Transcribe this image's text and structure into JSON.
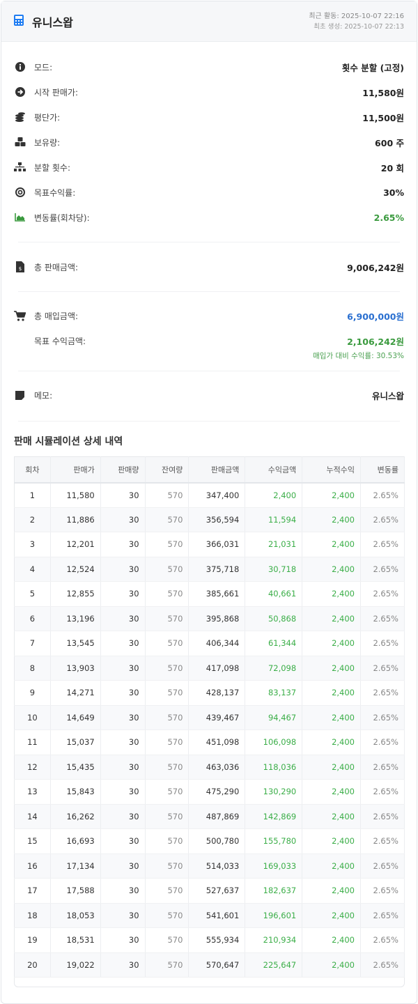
{
  "header": {
    "title": "유니스왑",
    "icon": "calculator-icon",
    "last_activity": "최근 활동: 2025-10-07 22:16",
    "created": "최초 생성: 2025-10-07 22:13"
  },
  "info": [
    {
      "icon": "info-circle-icon",
      "label": "모드:",
      "value": "횟수 분할 (고정)"
    },
    {
      "icon": "arrow-circle-right-icon",
      "label": "시작 판매가:",
      "value": "11,580원"
    },
    {
      "icon": "coins-icon",
      "label": "평단가:",
      "value": "11,500원"
    },
    {
      "icon": "cubes-icon",
      "label": "보유량:",
      "value": "600 주"
    },
    {
      "icon": "sitemap-icon",
      "label": "분할 횟수:",
      "value": "20 회"
    },
    {
      "icon": "target-icon",
      "label": "목표수익률:",
      "value": "30%"
    },
    {
      "icon": "area-chart-icon",
      "label": "변동률(회차당):",
      "value": "2.65%"
    }
  ],
  "totals": {
    "sales_label": "총 판매금액:",
    "sales_value": "9,006,242원",
    "purchase_label": "총 매입금액:",
    "purchase_value": "6,900,000원",
    "target_label": "목표 수익금액:",
    "target_value": "2,106,242원",
    "ratio": "매입가 대비 수익률: 30.53%"
  },
  "memo": {
    "label": "메모:",
    "value": "유니스왑"
  },
  "colors": {
    "accent": "#1e7cf2",
    "green": "#3a9a3e",
    "blue": "#2a6fd0"
  },
  "table": {
    "title": "판매 시뮬레이션 상세 내역",
    "columns": [
      "회차",
      "판매가",
      "판매량",
      "잔여량",
      "판매금액",
      "수익금액",
      "누적수익",
      "변동률"
    ],
    "rows": [
      [
        "1",
        "11,580",
        "30",
        "570",
        "347,400",
        "2,400",
        "2,400",
        "2.65%"
      ],
      [
        "2",
        "11,886",
        "30",
        "570",
        "356,594",
        "11,594",
        "2,400",
        "2.65%"
      ],
      [
        "3",
        "12,201",
        "30",
        "570",
        "366,031",
        "21,031",
        "2,400",
        "2.65%"
      ],
      [
        "4",
        "12,524",
        "30",
        "570",
        "375,718",
        "30,718",
        "2,400",
        "2.65%"
      ],
      [
        "5",
        "12,855",
        "30",
        "570",
        "385,661",
        "40,661",
        "2,400",
        "2.65%"
      ],
      [
        "6",
        "13,196",
        "30",
        "570",
        "395,868",
        "50,868",
        "2,400",
        "2.65%"
      ],
      [
        "7",
        "13,545",
        "30",
        "570",
        "406,344",
        "61,344",
        "2,400",
        "2.65%"
      ],
      [
        "8",
        "13,903",
        "30",
        "570",
        "417,098",
        "72,098",
        "2,400",
        "2.65%"
      ],
      [
        "9",
        "14,271",
        "30",
        "570",
        "428,137",
        "83,137",
        "2,400",
        "2.65%"
      ],
      [
        "10",
        "14,649",
        "30",
        "570",
        "439,467",
        "94,467",
        "2,400",
        "2.65%"
      ],
      [
        "11",
        "15,037",
        "30",
        "570",
        "451,098",
        "106,098",
        "2,400",
        "2.65%"
      ],
      [
        "12",
        "15,435",
        "30",
        "570",
        "463,036",
        "118,036",
        "2,400",
        "2.65%"
      ],
      [
        "13",
        "15,843",
        "30",
        "570",
        "475,290",
        "130,290",
        "2,400",
        "2.65%"
      ],
      [
        "14",
        "16,262",
        "30",
        "570",
        "487,869",
        "142,869",
        "2,400",
        "2.65%"
      ],
      [
        "15",
        "16,693",
        "30",
        "570",
        "500,780",
        "155,780",
        "2,400",
        "2.65%"
      ],
      [
        "16",
        "17,134",
        "30",
        "570",
        "514,033",
        "169,033",
        "2,400",
        "2.65%"
      ],
      [
        "17",
        "17,588",
        "30",
        "570",
        "527,637",
        "182,637",
        "2,400",
        "2.65%"
      ],
      [
        "18",
        "18,053",
        "30",
        "570",
        "541,601",
        "196,601",
        "2,400",
        "2.65%"
      ],
      [
        "19",
        "18,531",
        "30",
        "570",
        "555,934",
        "210,934",
        "2,400",
        "2.65%"
      ],
      [
        "20",
        "19,022",
        "30",
        "570",
        "570,647",
        "225,647",
        "2,400",
        "2.65%"
      ]
    ]
  }
}
